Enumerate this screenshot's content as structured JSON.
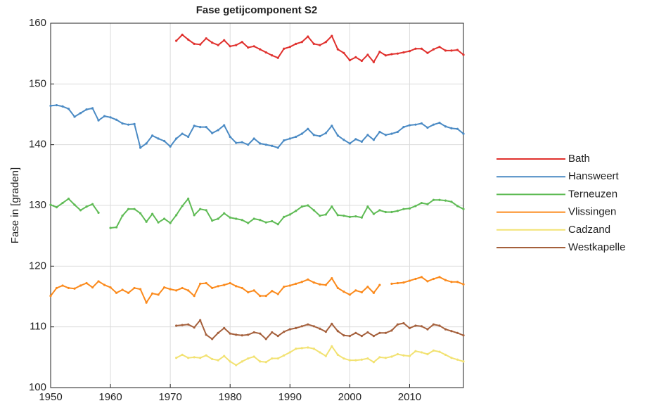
{
  "chart_data": {
    "type": "line",
    "title": "Fase getijcomponent S2",
    "ylabel": "Fase in [graden]",
    "x": [
      1950,
      1951,
      1952,
      1953,
      1954,
      1955,
      1956,
      1957,
      1958,
      1959,
      1960,
      1961,
      1962,
      1963,
      1964,
      1965,
      1966,
      1967,
      1968,
      1969,
      1970,
      1971,
      1972,
      1973,
      1974,
      1975,
      1976,
      1977,
      1978,
      1979,
      1980,
      1981,
      1982,
      1983,
      1984,
      1985,
      1986,
      1987,
      1988,
      1989,
      1990,
      1991,
      1992,
      1993,
      1994,
      1995,
      1996,
      1997,
      1998,
      1999,
      2000,
      2001,
      2002,
      2003,
      2004,
      2005,
      2006,
      2007,
      2008,
      2009,
      2010,
      2011,
      2012,
      2013,
      2014,
      2015,
      2016,
      2017,
      2018,
      2019
    ],
    "xlim": [
      1950,
      2019
    ],
    "xticks": [
      1950,
      1960,
      1970,
      1980,
      1990,
      2000,
      2010
    ],
    "ylim": [
      100,
      160
    ],
    "yticks": [
      100,
      110,
      120,
      130,
      140,
      150,
      160
    ],
    "grid": true,
    "legend": "right",
    "series": [
      {
        "name": "Bath",
        "color": "#e0302d",
        "values": [
          null,
          null,
          null,
          null,
          null,
          null,
          null,
          null,
          null,
          null,
          null,
          null,
          null,
          null,
          null,
          null,
          null,
          null,
          null,
          null,
          null,
          157.1,
          158.1,
          157.3,
          156.6,
          156.5,
          157.5,
          156.8,
          156.4,
          157.2,
          156.2,
          156.4,
          156.9,
          156.0,
          156.2,
          155.7,
          155.2,
          154.7,
          154.3,
          155.8,
          156.1,
          156.6,
          156.9,
          157.8,
          156.6,
          156.4,
          156.9,
          157.9,
          155.7,
          155.1,
          153.9,
          154.4,
          153.8,
          154.8,
          153.6,
          155.3,
          154.7,
          154.9,
          155.0,
          155.2,
          155.4,
          155.8,
          155.8,
          155.1,
          155.7,
          156.1,
          155.5,
          155.5,
          155.6,
          154.8
        ]
      },
      {
        "name": "Hansweert",
        "color": "#4a8ac4",
        "values": [
          146.4,
          146.5,
          146.3,
          145.9,
          144.6,
          145.2,
          145.8,
          146.0,
          144.0,
          144.7,
          144.5,
          144.1,
          143.5,
          143.3,
          143.4,
          139.5,
          140.2,
          141.5,
          141.0,
          140.6,
          139.7,
          141.0,
          141.8,
          141.3,
          143.1,
          142.9,
          142.9,
          141.9,
          142.4,
          143.2,
          141.3,
          140.3,
          140.4,
          140.0,
          141.0,
          140.2,
          140.0,
          139.8,
          139.5,
          140.7,
          141.0,
          141.3,
          141.8,
          142.6,
          141.6,
          141.4,
          141.9,
          143.1,
          141.5,
          140.8,
          140.2,
          140.9,
          140.5,
          141.6,
          140.8,
          142.1,
          141.6,
          141.8,
          142.1,
          142.9,
          143.2,
          143.3,
          143.5,
          142.8,
          143.3,
          143.6,
          143.0,
          142.7,
          142.6,
          141.8
        ]
      },
      {
        "name": "Terneuzen",
        "color": "#5fbb55",
        "values": [
          130.1,
          129.7,
          130.4,
          131.1,
          130.1,
          129.2,
          129.8,
          130.2,
          128.8,
          null,
          126.3,
          126.4,
          128.3,
          129.4,
          129.4,
          128.7,
          127.3,
          128.6,
          127.2,
          127.8,
          127.1,
          128.4,
          129.9,
          131.1,
          128.4,
          129.4,
          129.2,
          127.5,
          127.8,
          128.7,
          128.0,
          127.8,
          127.6,
          127.1,
          127.8,
          127.6,
          127.2,
          127.4,
          126.9,
          128.1,
          128.5,
          129.1,
          129.8,
          130.0,
          129.2,
          128.3,
          128.5,
          129.8,
          128.4,
          128.3,
          128.1,
          128.2,
          128.0,
          129.8,
          128.6,
          129.2,
          128.9,
          128.9,
          129.1,
          129.4,
          129.5,
          129.9,
          130.4,
          130.2,
          130.9,
          130.9,
          130.8,
          130.6,
          129.9,
          129.4
        ]
      },
      {
        "name": "Vlissingen",
        "color": "#fb8a1c",
        "values": [
          115.1,
          116.4,
          116.8,
          116.4,
          116.3,
          116.8,
          117.2,
          116.5,
          117.5,
          116.9,
          116.5,
          115.6,
          116.1,
          115.6,
          116.4,
          116.2,
          114.0,
          115.5,
          115.3,
          116.5,
          116.2,
          116.0,
          116.4,
          116.0,
          115.1,
          117.1,
          117.2,
          116.4,
          116.7,
          116.9,
          117.2,
          116.7,
          116.4,
          115.7,
          116.0,
          115.1,
          115.1,
          115.9,
          115.4,
          116.6,
          116.8,
          117.1,
          117.4,
          117.8,
          117.3,
          117.0,
          116.9,
          118.0,
          116.4,
          115.8,
          115.3,
          116.0,
          115.7,
          116.6,
          115.6,
          116.9,
          null,
          117.1,
          117.2,
          117.3,
          117.6,
          117.9,
          118.2,
          117.5,
          117.9,
          118.2,
          117.7,
          117.4,
          117.4,
          117.0
        ]
      },
      {
        "name": "Cadzand",
        "color": "#f2e272",
        "values": [
          null,
          null,
          null,
          null,
          null,
          null,
          null,
          null,
          null,
          null,
          null,
          null,
          null,
          null,
          null,
          null,
          null,
          null,
          null,
          null,
          null,
          104.9,
          105.4,
          104.9,
          105.0,
          104.9,
          105.3,
          104.7,
          104.5,
          105.2,
          104.3,
          103.7,
          104.3,
          104.8,
          105.1,
          104.3,
          104.2,
          104.8,
          104.8,
          105.3,
          105.8,
          106.4,
          106.5,
          106.6,
          106.4,
          105.8,
          105.2,
          106.8,
          105.4,
          104.8,
          104.5,
          104.5,
          104.6,
          104.8,
          104.2,
          105.0,
          104.9,
          105.1,
          105.5,
          105.3,
          105.2,
          106.0,
          105.8,
          105.5,
          106.1,
          105.9,
          105.4,
          104.9,
          104.6,
          104.3
        ]
      },
      {
        "name": "Westkapelle",
        "color": "#a5603c",
        "values": [
          null,
          null,
          null,
          null,
          null,
          null,
          null,
          null,
          null,
          null,
          null,
          null,
          null,
          null,
          null,
          null,
          null,
          null,
          null,
          null,
          null,
          110.2,
          110.3,
          110.4,
          109.9,
          111.1,
          108.7,
          108.0,
          109.0,
          109.8,
          108.9,
          108.7,
          108.6,
          108.7,
          109.1,
          108.9,
          108.0,
          109.1,
          108.5,
          109.2,
          109.6,
          109.8,
          110.1,
          110.4,
          110.1,
          109.7,
          109.2,
          110.5,
          109.3,
          108.6,
          108.5,
          109.0,
          108.5,
          109.1,
          108.5,
          109.0,
          109.0,
          109.4,
          110.4,
          110.6,
          109.8,
          110.2,
          110.1,
          109.6,
          110.4,
          110.2,
          109.6,
          109.3,
          109.0,
          108.6
        ]
      }
    ]
  }
}
